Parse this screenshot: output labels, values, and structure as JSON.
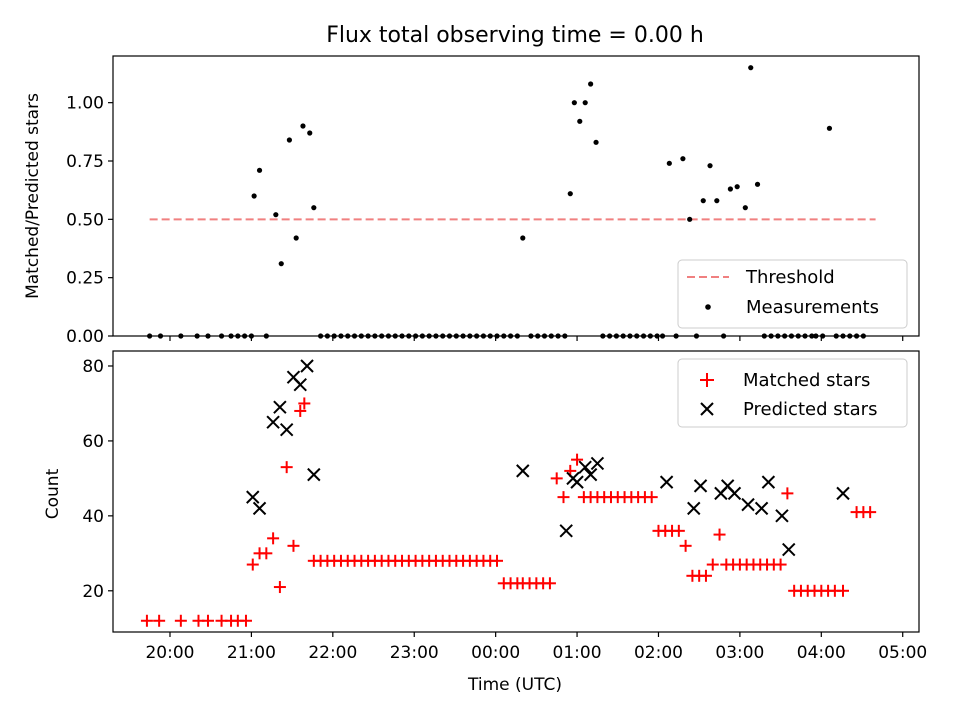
{
  "chart_data": [
    {
      "type": "scatter",
      "title": "Flux total observing time = 0.00 h",
      "xlabel": "",
      "ylabel": "Matched/Predicted stars",
      "ylim": [
        0.0,
        1.2
      ],
      "y_ticks": [
        "0.00",
        "0.25",
        "0.50",
        "0.75",
        "1.00"
      ],
      "y_tick_values": [
        0.0,
        0.25,
        0.5,
        0.75,
        1.0
      ],
      "grid": false,
      "legend_position": "bottom-right",
      "threshold": {
        "name": "Threshold",
        "value": 0.5,
        "x_range": [
          "19:45",
          "04:40"
        ],
        "color": "#f08080"
      },
      "series": [
        {
          "name": "Measurements",
          "color": "#000000",
          "x": [
            "19:45",
            "19:53",
            "20:08",
            "20:20",
            "20:28",
            "20:38",
            "20:45",
            "20:50",
            "20:55",
            "21:00",
            "21:02",
            "21:06",
            "21:11",
            "21:18",
            "21:22",
            "21:28",
            "21:33",
            "21:38",
            "21:43",
            "21:46",
            "21:51",
            "21:56",
            "22:01",
            "22:06",
            "22:11",
            "22:16",
            "22:21",
            "22:26",
            "22:31",
            "22:36",
            "22:41",
            "22:46",
            "22:51",
            "22:56",
            "23:01",
            "23:06",
            "23:11",
            "23:16",
            "23:21",
            "23:26",
            "23:31",
            "23:36",
            "23:41",
            "23:46",
            "23:51",
            "23:56",
            "00:01",
            "00:06",
            "00:11",
            "00:16",
            "00:20",
            "00:26",
            "00:31",
            "00:36",
            "00:41",
            "00:46",
            "00:51",
            "00:55",
            "00:58",
            "01:02",
            "01:06",
            "01:10",
            "01:14",
            "01:19",
            "01:24",
            "01:29",
            "01:34",
            "01:39",
            "01:44",
            "01:49",
            "01:54",
            "01:59",
            "02:03",
            "02:08",
            "02:13",
            "02:18",
            "02:23",
            "02:28",
            "02:33",
            "02:38",
            "02:43",
            "02:48",
            "02:53",
            "02:58",
            "03:04",
            "03:08",
            "03:13",
            "03:18",
            "03:23",
            "03:28",
            "03:33",
            "03:38",
            "03:43",
            "03:48",
            "03:53",
            "03:56",
            "04:01",
            "04:06",
            "04:11",
            "04:16",
            "04:21",
            "04:26",
            "04:31"
          ],
          "y": [
            0.0,
            0.0,
            0.0,
            0.0,
            0.0,
            0.0,
            0.0,
            0.0,
            0.0,
            0.0,
            0.6,
            0.71,
            0.0,
            0.52,
            0.31,
            0.84,
            0.42,
            0.9,
            0.87,
            0.55,
            0.0,
            0.0,
            0.0,
            0.0,
            0.0,
            0.0,
            0.0,
            0.0,
            0.0,
            0.0,
            0.0,
            0.0,
            0.0,
            0.0,
            0.0,
            0.0,
            0.0,
            0.0,
            0.0,
            0.0,
            0.0,
            0.0,
            0.0,
            0.0,
            0.0,
            0.0,
            0.0,
            0.0,
            0.0,
            0.0,
            0.42,
            0.0,
            0.0,
            0.0,
            0.0,
            0.0,
            0.0,
            0.61,
            1.0,
            0.92,
            1.0,
            1.08,
            0.83,
            0.0,
            0.0,
            0.0,
            0.0,
            0.0,
            0.0,
            0.0,
            0.0,
            0.0,
            0.0,
            0.74,
            0.0,
            0.76,
            0.5,
            0.0,
            0.58,
            0.73,
            0.58,
            0.0,
            0.63,
            0.64,
            0.55,
            1.15,
            0.65,
            0.0,
            0.0,
            0.0,
            0.0,
            0.0,
            0.0,
            0.0,
            0.0,
            0.0,
            0.0,
            0.89,
            0.0,
            0.0,
            0.0,
            0.0,
            0.0
          ]
        }
      ],
      "points_x": [
        "19:43",
        "19:52",
        "20:08",
        "20:22",
        "20:29",
        "20:38",
        "20:45",
        "20:51",
        "20:56",
        "21:00",
        "21:01",
        "21:05",
        "21:12",
        "21:16",
        "21:21",
        "21:26",
        "21:31",
        "21:34",
        "21:36",
        "21:39",
        "21:41",
        "21:46",
        "21:51",
        "21:56",
        "22:01",
        "22:06",
        "22:11",
        "22:16",
        "22:21",
        "22:26",
        "22:31",
        "22:36",
        "22:41",
        "22:46",
        "22:51",
        "22:56",
        "23:01",
        "23:06",
        "23:11",
        "23:16",
        "23:21",
        "23:26",
        "23:31",
        "23:36",
        "23:41",
        "23:46",
        "23:51",
        "23:56",
        "00:01",
        "00:06",
        "00:11",
        "00:16",
        "00:20",
        "00:26",
        "00:31",
        "00:36",
        "00:41",
        "00:46",
        "00:52",
        "00:56",
        "01:00",
        "01:04",
        "01:08",
        "01:12",
        "01:16",
        "01:20",
        "01:26",
        "01:31",
        "01:36",
        "01:41",
        "01:46",
        "01:51",
        "01:56",
        "02:01",
        "02:06",
        "02:11",
        "02:16",
        "02:21",
        "02:26",
        "02:31",
        "02:36",
        "02:41",
        "02:46",
        "02:51",
        "02:56",
        "03:01",
        "03:06",
        "03:11",
        "03:16",
        "03:21",
        "03:26",
        "03:31",
        "03:36",
        "03:41",
        "03:46",
        "03:51",
        "03:56",
        "04:01",
        "04:06",
        "04:16",
        "04:21",
        "04:26",
        "04:31",
        "04:36"
      ]
    },
    {
      "type": "scatter",
      "title": "",
      "xlabel": "Time (UTC)",
      "ylabel": "Count",
      "ylim": [
        9,
        84
      ],
      "y_ticks": [
        "20",
        "40",
        "60",
        "80"
      ],
      "y_tick_values": [
        20,
        40,
        60,
        80
      ],
      "x_ticks": [
        "20:00",
        "21:00",
        "22:00",
        "23:00",
        "00:00",
        "01:00",
        "02:00",
        "03:00",
        "04:00",
        "05:00"
      ],
      "grid": false,
      "legend_position": "top-right",
      "series": [
        {
          "name": "Matched stars",
          "marker": "plus",
          "color": "#ff0000",
          "x": [
            "19:43",
            "19:52",
            "20:08",
            "20:21",
            "20:28",
            "20:38",
            "20:45",
            "20:50",
            "20:56",
            "21:01",
            "21:06",
            "21:11",
            "21:16",
            "21:21",
            "21:26",
            "21:31",
            "21:36",
            "21:39",
            "21:46",
            "21:51",
            "21:56",
            "22:01",
            "22:06",
            "22:11",
            "22:16",
            "22:21",
            "22:26",
            "22:31",
            "22:36",
            "22:41",
            "22:46",
            "22:51",
            "22:56",
            "23:01",
            "23:06",
            "23:11",
            "23:16",
            "23:21",
            "23:26",
            "23:31",
            "23:36",
            "23:41",
            "23:46",
            "23:51",
            "23:56",
            "00:01",
            "00:06",
            "00:11",
            "00:16",
            "00:20",
            "00:25",
            "00:30",
            "00:35",
            "00:40",
            "00:45",
            "00:50",
            "00:55",
            "01:00",
            "01:05",
            "01:10",
            "01:15",
            "01:20",
            "01:25",
            "01:30",
            "01:35",
            "01:40",
            "01:45",
            "01:50",
            "01:55",
            "02:00",
            "02:05",
            "02:10",
            "02:15",
            "02:20",
            "02:25",
            "02:30",
            "02:35",
            "02:40",
            "02:45",
            "02:50",
            "02:55",
            "03:00",
            "03:05",
            "03:10",
            "03:15",
            "03:20",
            "03:25",
            "03:30",
            "03:35",
            "03:40",
            "03:45",
            "03:50",
            "03:55",
            "04:00",
            "04:05",
            "04:10",
            "04:16",
            "04:26",
            "04:31",
            "04:36"
          ],
          "y": [
            12,
            12,
            12,
            12,
            12,
            12,
            12,
            12,
            12,
            27,
            30,
            30,
            34,
            21,
            53,
            32,
            68,
            70,
            28,
            28,
            28,
            28,
            28,
            28,
            28,
            28,
            28,
            28,
            28,
            28,
            28,
            28,
            28,
            28,
            28,
            28,
            28,
            28,
            28,
            28,
            28,
            28,
            28,
            28,
            28,
            28,
            22,
            22,
            22,
            22,
            22,
            22,
            22,
            22,
            50,
            45,
            52,
            55,
            45,
            45,
            45,
            45,
            45,
            45,
            45,
            45,
            45,
            45,
            45,
            36,
            36,
            36,
            36,
            32,
            24,
            24,
            24,
            27,
            35,
            27,
            27,
            27,
            27,
            27,
            27,
            27,
            27,
            27,
            46,
            20,
            20,
            20,
            20,
            20,
            20,
            20,
            20,
            41,
            41,
            41
          ]
        },
        {
          "name": "Predicted stars",
          "marker": "x",
          "color": "#000000",
          "x": [
            "21:01",
            "21:06",
            "21:16",
            "21:21",
            "21:26",
            "21:31",
            "21:36",
            "21:41",
            "21:46",
            "00:20",
            "00:52",
            "00:57",
            "01:00",
            "01:06",
            "01:10",
            "01:15",
            "02:06",
            "02:26",
            "02:31",
            "02:46",
            "02:51",
            "02:56",
            "03:06",
            "03:16",
            "03:21",
            "03:31",
            "03:36",
            "04:16"
          ],
          "y": [
            45,
            42,
            65,
            69,
            63,
            77,
            75,
            80,
            51,
            52,
            36,
            50,
            49,
            53,
            51,
            54,
            49,
            42,
            48,
            46,
            48,
            46,
            43,
            42,
            49,
            40,
            31,
            46
          ]
        }
      ]
    }
  ]
}
